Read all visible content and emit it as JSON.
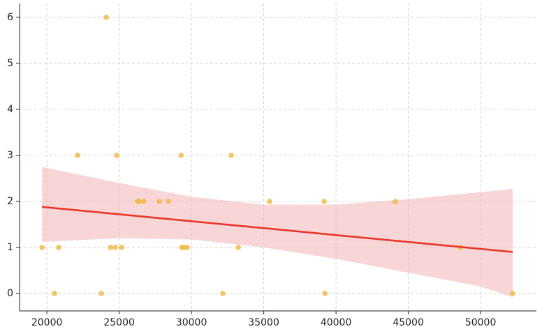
{
  "chart_data": {
    "type": "scatter",
    "x": [
      19660,
      20530,
      20820,
      22130,
      23770,
      24110,
      24400,
      24730,
      24830,
      25170,
      26280,
      26380,
      26710,
      27780,
      28410,
      29280,
      29320,
      29470,
      29710,
      32170,
      32750,
      33240,
      35410,
      39180,
      39230,
      44110,
      48600,
      52220
    ],
    "values": [
      1,
      0,
      1,
      3,
      0,
      6,
      1,
      1,
      3,
      1,
      2,
      2,
      2,
      2,
      2,
      3,
      1,
      1,
      1,
      0,
      3,
      1,
      2,
      2,
      0,
      2,
      1,
      0
    ],
    "color": "#f0b840",
    "fit": {
      "x": [
        19660,
        52220
      ],
      "values": [
        1.88,
        0.9
      ],
      "color": "#e8362a"
    },
    "band": {
      "x": [
        19660,
        25000,
        30000,
        35000,
        40000,
        45000,
        50000,
        52220
      ],
      "upper": [
        2.75,
        2.4,
        2.1,
        1.93,
        1.93,
        2.05,
        2.2,
        2.27
      ],
      "lower": [
        1.12,
        1.2,
        1.17,
        1.0,
        0.75,
        0.45,
        0.15,
        -0.08
      ],
      "color": "#f4c0c3"
    },
    "xlim": [
      18110,
      53860
    ],
    "ylim": [
      -0.38,
      6.3
    ],
    "xticks": [
      20000,
      25000,
      30000,
      35000,
      40000,
      45000,
      50000
    ],
    "yticks": [
      0,
      1,
      2,
      3,
      4,
      5,
      6
    ],
    "grid": true
  }
}
